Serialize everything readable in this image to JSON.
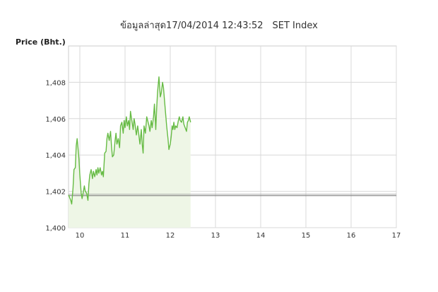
{
  "header": {
    "updated_label": "ข้อมูลล่าสุด",
    "timestamp": "17/04/2014 12:43:52",
    "index_name": "SET Index"
  },
  "chart_data": {
    "type": "area",
    "title": "ข้อมูลล่าสุด17/04/2014 12:43:52   SET Index",
    "xlabel": "",
    "ylabel": "Price (Bht.)",
    "ylim": [
      1400,
      1410
    ],
    "xlim": [
      9.75,
      17
    ],
    "y_ticks": [
      {
        "value": 1400,
        "label": "1,400"
      },
      {
        "value": 1402,
        "label": "1,402"
      },
      {
        "value": 1404,
        "label": "1,404"
      },
      {
        "value": 1406,
        "label": "1,406"
      },
      {
        "value": 1408,
        "label": "1,408"
      }
    ],
    "x_ticks": [
      {
        "value": 10,
        "label": "10"
      },
      {
        "value": 11,
        "label": "11"
      },
      {
        "value": 12,
        "label": "12"
      },
      {
        "value": 13,
        "label": "13"
      },
      {
        "value": 14,
        "label": "14"
      },
      {
        "value": 15,
        "label": "15"
      },
      {
        "value": 16,
        "label": "16"
      },
      {
        "value": 17,
        "label": "17"
      }
    ],
    "grid": true,
    "reference_line": 1401.8,
    "series_color": "#66bb44",
    "series": [
      {
        "x": [
          9.75,
          9.8,
          9.82,
          9.84,
          9.85,
          9.87,
          9.9,
          9.92,
          9.94,
          9.96,
          9.98,
          10.0,
          10.03,
          10.05,
          10.08,
          10.1,
          10.12,
          10.15,
          10.18,
          10.2,
          10.22,
          10.25,
          10.28,
          10.3,
          10.33,
          10.36,
          10.38,
          10.4,
          10.42,
          10.45,
          10.48,
          10.5,
          10.52,
          10.55,
          10.58,
          10.6,
          10.62,
          10.65,
          10.68,
          10.7,
          10.72,
          10.75,
          10.78,
          10.8,
          10.82,
          10.85,
          10.88,
          10.9,
          10.93,
          10.96,
          10.98,
          11.0,
          11.03,
          11.05,
          11.08,
          11.1,
          11.12,
          11.15,
          11.18,
          11.2,
          11.22,
          11.25,
          11.28,
          11.3,
          11.33,
          11.36,
          11.38,
          11.4,
          11.42,
          11.45,
          11.48,
          11.5,
          11.53,
          11.55,
          11.58,
          11.6,
          11.63,
          11.65,
          11.68,
          11.7,
          11.72,
          11.75,
          11.78,
          11.8,
          11.83,
          11.85,
          11.88,
          11.9,
          11.92,
          11.95,
          11.97,
          12.0,
          12.02,
          12.04,
          12.06,
          12.08,
          12.1,
          12.12,
          12.15,
          12.18,
          12.2,
          12.22,
          12.25,
          12.28,
          12.3,
          12.33,
          12.36,
          12.38,
          12.4,
          12.42,
          12.45
        ],
        "y": [
          1401.8,
          1401.5,
          1401.3,
          1401.9,
          1402.2,
          1403.2,
          1403.3,
          1404.5,
          1404.9,
          1404.4,
          1403.8,
          1402.9,
          1401.9,
          1401.6,
          1402.0,
          1402.3,
          1402.0,
          1401.9,
          1401.5,
          1402.4,
          1402.9,
          1403.2,
          1402.7,
          1403.1,
          1402.8,
          1403.2,
          1402.9,
          1403.3,
          1403.0,
          1403.3,
          1402.9,
          1403.1,
          1402.8,
          1404.1,
          1404.2,
          1404.9,
          1405.2,
          1404.8,
          1405.3,
          1404.5,
          1403.9,
          1404.0,
          1404.8,
          1405.2,
          1404.6,
          1404.9,
          1404.4,
          1405.6,
          1405.8,
          1405.2,
          1405.9,
          1405.5,
          1406.1,
          1405.6,
          1405.9,
          1405.4,
          1406.4,
          1405.9,
          1405.4,
          1406.0,
          1405.7,
          1405.1,
          1405.6,
          1405.2,
          1404.6,
          1405.4,
          1404.6,
          1404.1,
          1405.6,
          1405.2,
          1406.1,
          1405.9,
          1405.6,
          1405.3,
          1405.9,
          1405.5,
          1406.1,
          1406.8,
          1405.4,
          1406.6,
          1407.5,
          1408.3,
          1407.2,
          1407.4,
          1408.0,
          1407.7,
          1406.8,
          1406.2,
          1405.6,
          1404.9,
          1404.3,
          1404.6,
          1405.0,
          1405.6,
          1405.4,
          1405.8,
          1405.4,
          1405.6,
          1405.5,
          1405.9,
          1406.1,
          1405.9,
          1405.8,
          1406.1,
          1405.7,
          1405.5,
          1405.3,
          1405.8,
          1405.9,
          1406.1,
          1405.8
        ]
      }
    ]
  }
}
